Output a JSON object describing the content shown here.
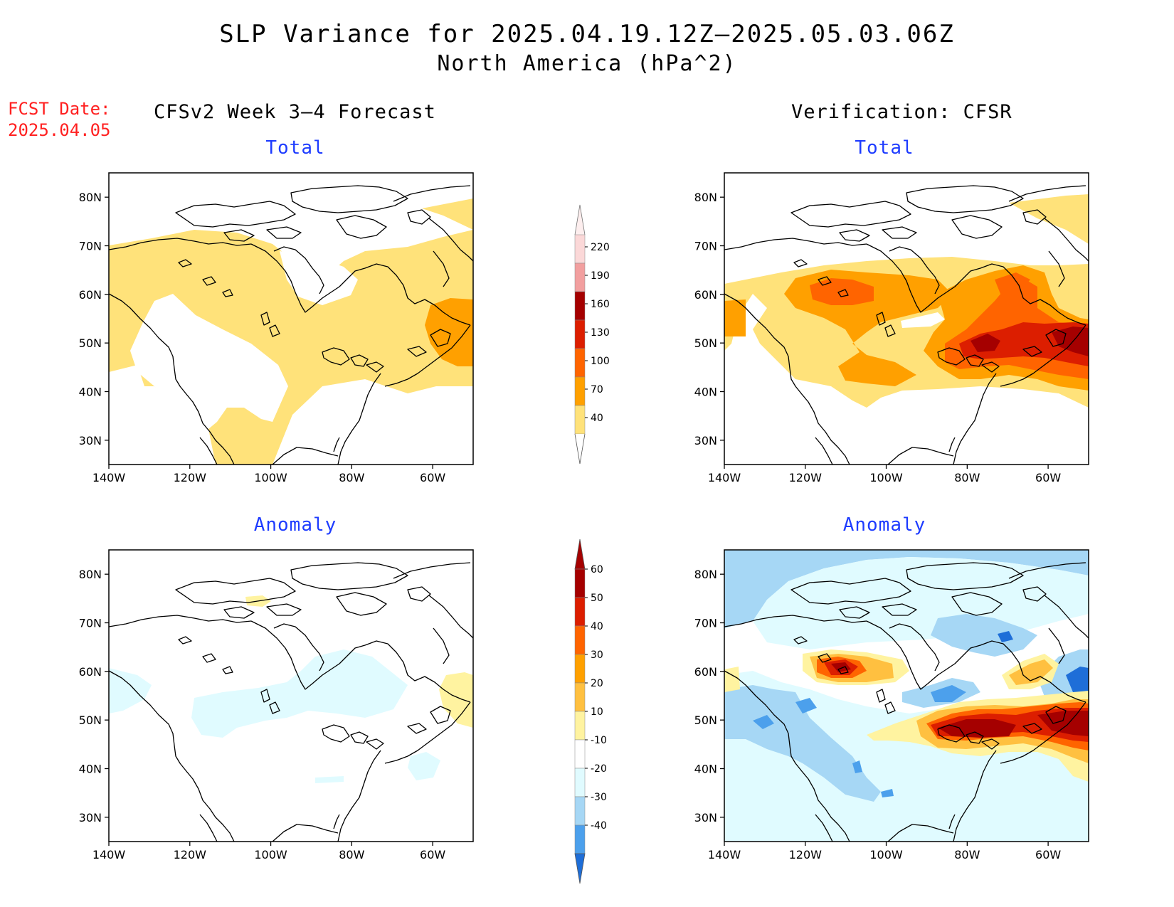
{
  "header": {
    "title": "SLP Variance for 2025.04.19.12Z–2025.05.03.06Z",
    "subtitle": "North America (hPa^2)",
    "fcst_label": "FCST Date:",
    "fcst_date": "2025.04.05"
  },
  "columns": {
    "left": "CFSv2 Week 3–4 Forecast",
    "right": "Verification: CFSR"
  },
  "panels": {
    "forecast_total": "Total",
    "forecast_anomaly": "Anomaly",
    "verification_total": "Total",
    "verification_anomaly": "Anomaly"
  },
  "axes": {
    "lat_labels": [
      "80N",
      "70N",
      "60N",
      "50N",
      "40N",
      "30N"
    ],
    "lon_labels": [
      "140W",
      "120W",
      "100W",
      "80W",
      "60W"
    ]
  },
  "colorbars": {
    "total": {
      "labels": [
        "220",
        "190",
        "160",
        "130",
        "100",
        "70",
        "40"
      ],
      "colors": [
        "#fbd8d8",
        "#f29f9f",
        "#a50000",
        "#dc1e00",
        "#ff6400",
        "#ffa000",
        "#ffe27a"
      ]
    },
    "anomaly": {
      "labels": [
        "60",
        "50",
        "40",
        "30",
        "20",
        "10",
        "-10",
        "-20",
        "-30",
        "-40"
      ],
      "colors": [
        "#a50000",
        "#dc1e00",
        "#ff6400",
        "#ffa000",
        "#ffc040",
        "#fff3a0",
        "#ffffff",
        "#e0fbff",
        "#a6d7f5",
        "#4ca0ec",
        "#1e6ed8"
      ]
    }
  }
}
